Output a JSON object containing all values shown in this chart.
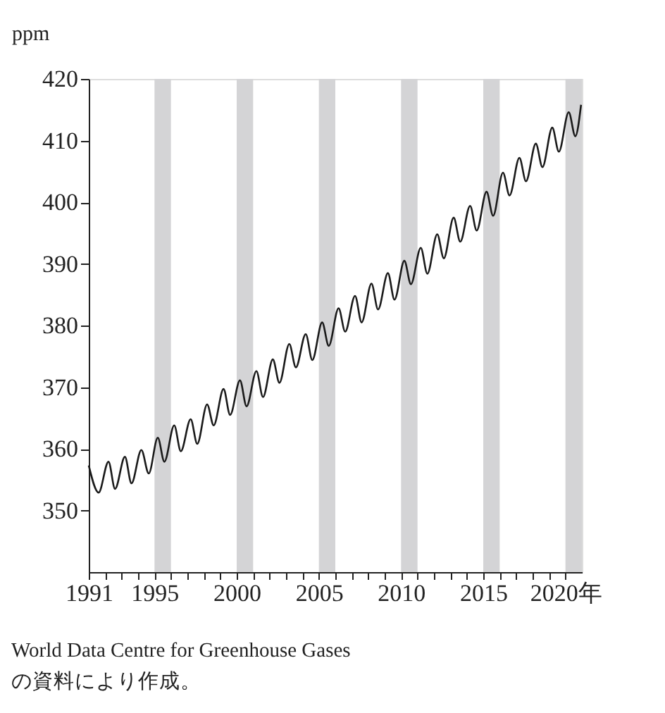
{
  "chart_data": {
    "type": "line",
    "ylabel": "ppm",
    "x": [
      1991.0,
      1991.6,
      1992.2,
      1992.6,
      1993.2,
      1993.6,
      1994.2,
      1994.65,
      1995.2,
      1995.6,
      1996.2,
      1996.6,
      1997.2,
      1997.6,
      1998.2,
      1998.6,
      1999.2,
      1999.6,
      2000.2,
      2000.6,
      2001.2,
      2001.6,
      2002.2,
      2002.6,
      2003.2,
      2003.6,
      2004.2,
      2004.6,
      2005.2,
      2005.6,
      2006.2,
      2006.6,
      2007.2,
      2007.6,
      2008.2,
      2008.6,
      2009.2,
      2009.6,
      2010.2,
      2010.6,
      2011.2,
      2011.6,
      2012.2,
      2012.6,
      2013.2,
      2013.6,
      2014.2,
      2014.6,
      2015.2,
      2015.6,
      2016.2,
      2016.6,
      2017.2,
      2017.6,
      2018.2,
      2018.6,
      2019.2,
      2019.6,
      2020.2,
      2020.6,
      2020.95
    ],
    "series": [
      {
        "color": "#1a1a1a",
        "values": [
          357.3,
          352.9,
          357.9,
          353.5,
          358.7,
          354.4,
          359.8,
          356.0,
          361.8,
          357.9,
          363.8,
          359.6,
          364.8,
          360.8,
          367.2,
          363.8,
          369.7,
          365.5,
          371.1,
          366.9,
          372.6,
          368.4,
          374.5,
          370.7,
          377.0,
          373.2,
          378.6,
          374.4,
          380.5,
          376.7,
          382.8,
          379.0,
          384.8,
          380.5,
          386.8,
          382.6,
          388.5,
          384.2,
          390.5,
          386.7,
          392.6,
          388.4,
          394.8,
          390.9,
          397.5,
          393.6,
          399.4,
          395.4,
          401.7,
          397.8,
          404.8,
          401.1,
          407.2,
          403.4,
          409.5,
          405.7,
          412.1,
          408.2,
          414.6,
          410.7,
          415.8
        ]
      }
    ],
    "xlim": [
      1991,
      2021
    ],
    "xticks": [
      1991,
      {
        "value": 1992,
        "label": null
      },
      {
        "value": 1993,
        "label": null
      },
      {
        "value": 1994,
        "label": null
      },
      1995,
      {
        "value": 1996,
        "label": null
      },
      {
        "value": 1997,
        "label": null
      },
      {
        "value": 1998,
        "label": null
      },
      {
        "value": 1999,
        "label": null
      },
      2000,
      {
        "value": 2001,
        "label": null
      },
      {
        "value": 2002,
        "label": null
      },
      {
        "value": 2003,
        "label": null
      },
      {
        "value": 2004,
        "label": null
      },
      2005,
      {
        "value": 2006,
        "label": null
      },
      {
        "value": 2007,
        "label": null
      },
      {
        "value": 2008,
        "label": null
      },
      {
        "value": 2009,
        "label": null
      },
      2010,
      {
        "value": 2011,
        "label": null
      },
      {
        "value": 2012,
        "label": null
      },
      {
        "value": 2013,
        "label": null
      },
      {
        "value": 2014,
        "label": null
      },
      2015,
      {
        "value": 2016,
        "label": null
      },
      {
        "value": 2017,
        "label": null
      },
      {
        "value": 2018,
        "label": null
      },
      {
        "value": 2019,
        "label": null
      },
      {
        "value": 2020,
        "label": "2020年"
      }
    ],
    "ylim": [
      340,
      420
    ],
    "yticks": [
      350,
      360,
      370,
      380,
      390,
      400,
      410,
      420
    ],
    "bands": [
      {
        "axis": "x",
        "from": 1995,
        "to": 1996,
        "color": "#d4d4d6"
      },
      {
        "axis": "x",
        "from": 2000,
        "to": 2001,
        "color": "#d4d4d6"
      },
      {
        "axis": "x",
        "from": 2005,
        "to": 2006,
        "color": "#d4d4d6"
      },
      {
        "axis": "x",
        "from": 2010,
        "to": 2011,
        "color": "#d4d4d6"
      },
      {
        "axis": "x",
        "from": 2015,
        "to": 2016,
        "color": "#d4d4d6"
      },
      {
        "axis": "x",
        "from": 2020,
        "to": 2021,
        "color": "#d4d4d6"
      }
    ],
    "grid": false,
    "marker": "none",
    "line_style": "solid",
    "annotations": [
      "World Data Centre for Greenhouse Gases",
      "の資料により作成。"
    ]
  }
}
